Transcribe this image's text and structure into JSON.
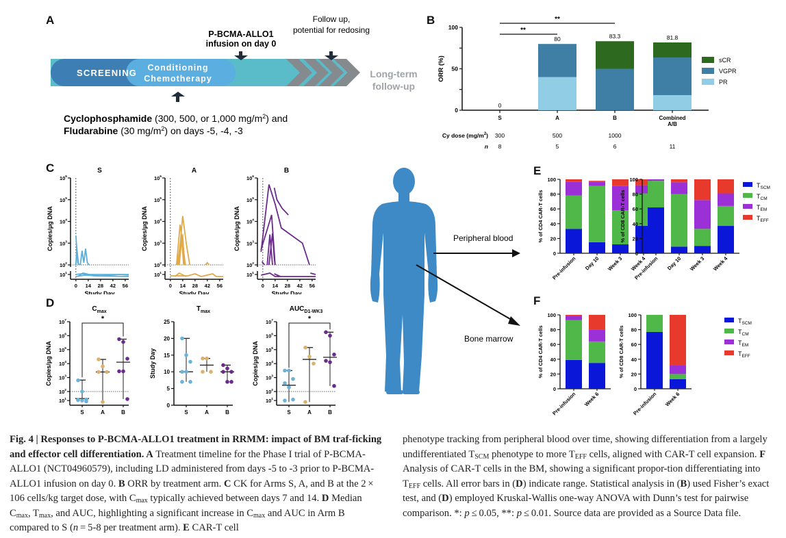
{
  "panels": {
    "A": {
      "label": "A",
      "timeline": {
        "screening": "SCREENING",
        "conditioning_line1": "Conditioning",
        "conditioning_line2": "Chemotherapy",
        "longterm_line1": "Long-term",
        "longterm_line2": "follow-up"
      },
      "infusion_line1": "P-BCMA-ALLO1",
      "infusion_line2": "infusion on day 0",
      "followup_line1": "Follow up,",
      "followup_line2": "potential for redosing",
      "ld_cy_bold": "Cyclophosphamide",
      "ld_cy_rest": " (300, 500, or 1,000 mg/m",
      "ld_cy_sup": "2",
      "ld_cy_end": ") and",
      "ld_flu_bold": "Fludarabine",
      "ld_flu_rest": " (30 mg/m",
      "ld_flu_sup": "2",
      "ld_flu_end": ") on days -5, -4, -3",
      "colors": {
        "screening": "#3d7fb5",
        "conditioning": "#5aaee0",
        "timeline": "#5bbcc9",
        "chevron": "#858a8e",
        "longterm": "#a0a4a8",
        "arrow": "#1f2d3d"
      }
    },
    "B": {
      "label": "B"
    },
    "C": {
      "label": "C"
    },
    "D": {
      "label": "D"
    },
    "E": {
      "label": "E"
    },
    "F": {
      "label": "F"
    },
    "body": {
      "peripheral_blood": "Peripheral blood",
      "bone_marrow": "Bone marrow",
      "silhouette_color": "#3d8ac6"
    }
  },
  "chart_data": [
    {
      "id": "B",
      "type": "bar",
      "stacked": true,
      "ylabel": "ORR (%)",
      "ylim": [
        0,
        100
      ],
      "yticks": [
        "0",
        "50",
        "100"
      ],
      "categories": [
        "S",
        "A",
        "B",
        "Combined A/B"
      ],
      "category_lines": [
        [
          "S"
        ],
        [
          "A"
        ],
        [
          "B"
        ],
        [
          "Combined",
          "A/B"
        ]
      ],
      "series": [
        {
          "name": "PR",
          "color": "#92cde6",
          "values": [
            0,
            40,
            0,
            18.2
          ]
        },
        {
          "name": "VGPR",
          "color": "#3f7fa6",
          "values": [
            0,
            40,
            50,
            45.4
          ]
        },
        {
          "name": "sCR",
          "color": "#2d6a1f",
          "values": [
            0,
            0,
            33.3,
            18.2
          ]
        }
      ],
      "legend_order": [
        "sCR",
        "VGPR",
        "PR"
      ],
      "totals": [
        "0",
        "80",
        "83.3",
        "81.8"
      ],
      "significance": [
        {
          "from": "S",
          "to": "A",
          "label": "**"
        },
        {
          "from": "S",
          "to": "B",
          "label": "**"
        }
      ],
      "table": {
        "row1_label": "Cy dose (mg/m",
        "row1_sup": "2",
        "row1_end": ")",
        "row1_values": [
          "300",
          "500",
          "1000",
          ""
        ],
        "row2_label": "n",
        "row2_values": [
          "8",
          "5",
          "6",
          "11"
        ]
      }
    },
    {
      "id": "C",
      "type": "line",
      "xlabel": "Study Day",
      "ylabel": "Copies/μg DNA",
      "yscale": "log",
      "yticks": [
        "10",
        "10",
        "10",
        "10",
        "10",
        "10"
      ],
      "ytick_exps": [
        "1",
        "2",
        "3",
        "4",
        "5",
        "6"
      ],
      "xticks": [
        "0",
        "14",
        "28",
        "42",
        "56"
      ],
      "xlim": [
        -3,
        60
      ],
      "lloq": 100,
      "subplots": [
        {
          "title": "S",
          "color": "#5ab0da",
          "lines": [
            [
              [
                0,
                3.35
              ],
              [
                2,
                2.1
              ],
              [
                4,
                2.0
              ]
            ],
            [
              [
                0,
                2.0
              ],
              [
                1,
                2.8
              ],
              [
                3,
                2.0
              ]
            ],
            [
              [
                5,
                2.0
              ],
              [
                7,
                2.65
              ],
              [
                9,
                2.1
              ],
              [
                11,
                2.75
              ],
              [
                13,
                2.1
              ],
              [
                15,
                2.0
              ]
            ],
            [
              [
                0,
                1.0
              ],
              [
                6,
                1.05
              ],
              [
                14,
                1.0
              ],
              [
                60,
                1.0
              ]
            ],
            [
              [
                2,
                0.85
              ],
              [
                8,
                1.1
              ],
              [
                12,
                1.05
              ],
              [
                20,
                0.9
              ],
              [
                60,
                0.85
              ]
            ],
            [
              [
                0,
                0.85
              ],
              [
                10,
                0.95
              ],
              [
                28,
                0.9
              ],
              [
                50,
                1.0
              ],
              [
                60,
                0.95
              ]
            ]
          ]
        },
        {
          "title": "A",
          "color": "#e0aa4a",
          "lines": [
            [
              [
                7,
                2.0
              ],
              [
                11,
                3.85
              ],
              [
                14,
                3.0
              ],
              [
                17,
                2.0
              ]
            ],
            [
              [
                9,
                2.0
              ],
              [
                14,
                4.25
              ],
              [
                18,
                3.0
              ],
              [
                22,
                2.0
              ]
            ],
            [
              [
                8,
                2.0
              ],
              [
                12,
                3.2
              ],
              [
                14,
                3.35
              ],
              [
                16,
                2.0
              ]
            ],
            [
              [
                10,
                2.0
              ],
              [
                13,
                3.2
              ],
              [
                15,
                2.0
              ]
            ],
            [
              [
                40,
                2.0
              ],
              [
                42,
                2.1
              ],
              [
                44,
                2.0
              ]
            ],
            [
              [
                0,
                0.9
              ],
              [
                20,
                0.9
              ],
              [
                28,
                1.05
              ],
              [
                35,
                0.85
              ],
              [
                48,
                1.05
              ],
              [
                52,
                0.85
              ],
              [
                60,
                0.85
              ]
            ],
            [
              [
                5,
                0.85
              ],
              [
                10,
                1.1
              ],
              [
                18,
                0.85
              ]
            ]
          ]
        },
        {
          "title": "B",
          "color": "#6a2a8e",
          "lines": [
            [
              [
                -2,
                2.6
              ],
              [
                7,
                5.7
              ],
              [
                14,
                4.8
              ],
              [
                21,
                3.7
              ],
              [
                45,
                3.0
              ],
              [
                53,
                2.0
              ]
            ],
            [
              [
                13,
                5.55
              ],
              [
                16,
                5.0
              ],
              [
                22,
                4.6
              ],
              [
                29,
                4.3
              ]
            ],
            [
              [
                -2,
                2.7
              ],
              [
                10,
                4.3
              ],
              [
                14,
                2.0
              ]
            ],
            [
              [
                5,
                2.0
              ],
              [
                8,
                3.4
              ],
              [
                11,
                2.0
              ]
            ],
            [
              [
                7,
                2.0
              ],
              [
                11,
                3.45
              ],
              [
                13,
                2.3
              ],
              [
                14,
                2.0
              ]
            ],
            [
              [
                -1,
                2.15
              ],
              [
                2,
                2.0
              ]
            ],
            [
              [
                -2,
                0.95
              ],
              [
                8,
                1.1
              ],
              [
                14,
                0.85
              ],
              [
                60,
                0.85
              ]
            ],
            [
              [
                13,
                1.05
              ],
              [
                20,
                0.85
              ]
            ],
            [
              [
                54,
                1.1
              ],
              [
                60,
                1.0
              ]
            ]
          ]
        }
      ]
    },
    {
      "id": "D",
      "type": "scatter",
      "categories": [
        "S",
        "A",
        "B"
      ],
      "colors": {
        "S": "#6bb3d8",
        "A": "#dcb26a",
        "B": "#6a2a8e"
      },
      "subplots": [
        {
          "title": "C",
          "title_sub": "max",
          "ylabel": "Copies/μg DNA",
          "yscale": "log",
          "yticks_exp": [
            "1",
            "2",
            "3",
            "4",
            "5",
            "6",
            "7"
          ],
          "points": {
            "S": [
              2.8,
              2.0,
              1.1,
              1.05,
              1.0,
              0.9,
              1.05
            ],
            "A": [
              4.3,
              3.8,
              3.4,
              3.4,
              0.85
            ],
            "B": [
              5.75,
              5.55,
              4.35,
              3.45,
              3.45,
              1.15
            ]
          },
          "median": {
            "S": 1.2,
            "A": 3.4,
            "B": 4.1
          },
          "range": {
            "S": [
              0.85,
              2.82
            ],
            "A": [
              0.85,
              4.3
            ],
            "B": [
              1.15,
              5.75
            ]
          },
          "significance": {
            "from": "S",
            "to": "B",
            "label": "*"
          }
        },
        {
          "title": "T",
          "title_sub": "max",
          "ylabel": "Study Day",
          "yscale": "linear",
          "ylim": [
            0,
            25
          ],
          "yticks": [
            "0",
            "5",
            "10",
            "15",
            "20",
            "25"
          ],
          "points": {
            "S": [
              20,
              15,
              13,
              10,
              10,
              7,
              7
            ],
            "A": [
              14,
              14,
              10,
              10
            ],
            "B": [
              12,
              11,
              10,
              10,
              7,
              7
            ]
          },
          "median": {
            "S": 10,
            "A": 12,
            "B": 10
          },
          "range": {
            "S": [
              7,
              20
            ],
            "A": [
              10,
              14
            ],
            "B": [
              7,
              12
            ]
          }
        },
        {
          "title": "AUC",
          "title_sub": "D1-WK3",
          "ylabel": "Copies/μg DNA",
          "yscale": "log",
          "yticks_exp": [
            "1",
            "2",
            "3",
            "4",
            "5",
            "6",
            "7"
          ],
          "points": {
            "S": [
              3.5,
              3.5,
              2.9,
              2.6,
              2.3,
              1.1,
              1.0
            ],
            "A": [
              5.15,
              4.5,
              4.0,
              0.85
            ],
            "B": [
              6.25,
              6.0,
              4.65,
              4.2,
              4.1,
              2.4
            ]
          },
          "median": {
            "S": 2.45,
            "A": 4.3,
            "B": 4.45
          },
          "range": {
            "S": [
              0.85,
              3.5
            ],
            "A": [
              0.85,
              5.15
            ],
            "B": [
              2.4,
              6.25
            ]
          },
          "significance": {
            "from": "S",
            "to": "B",
            "label": "*"
          }
        }
      ]
    },
    {
      "id": "E",
      "type": "bar",
      "stacked": true,
      "ylim": [
        0,
        100
      ],
      "yticks": [
        "0",
        "20",
        "40",
        "60",
        "80",
        "100"
      ],
      "legend": [
        {
          "name": "T",
          "sub": "SCM",
          "color": "#0a16d8"
        },
        {
          "name": "T",
          "sub": "CM",
          "color": "#4fb848"
        },
        {
          "name": "T",
          "sub": "EM",
          "color": "#9b30d6"
        },
        {
          "name": "T",
          "sub": "EFF",
          "color": "#e8392d"
        }
      ],
      "subplots": [
        {
          "ylabel": "% of CD4 CAR-T cells",
          "categories": [
            "Pre-infusion",
            "Day 10",
            "Week 3",
            "Week 4"
          ],
          "series": {
            "TSCM": [
              33,
              15,
              12,
              37
            ],
            "TCM": [
              45,
              76,
              46,
              44
            ],
            "TEM": [
              19,
              6,
              33,
              11
            ],
            "TEFF": [
              3,
              1,
              9,
              8
            ]
          }
        },
        {
          "ylabel": "% of CD8 CAR-T cells",
          "categories": [
            "Pre-infusion",
            "Day 10",
            "Week 3",
            "Week 4"
          ],
          "series": {
            "TSCM": [
              62,
              9,
              10,
              37
            ],
            "TCM": [
              36,
              71,
              23,
              27
            ],
            "TEM": [
              2,
              16,
              39,
              17
            ],
            "TEFF": [
              0,
              4,
              28,
              19
            ]
          }
        }
      ]
    },
    {
      "id": "F",
      "type": "bar",
      "stacked": true,
      "ylim": [
        0,
        100
      ],
      "yticks": [
        "0",
        "20",
        "40",
        "60",
        "80",
        "100"
      ],
      "legend": [
        {
          "name": "T",
          "sub": "SCM",
          "color": "#0a16d8"
        },
        {
          "name": "T",
          "sub": "CM",
          "color": "#4fb848"
        },
        {
          "name": "T",
          "sub": "EM",
          "color": "#9b30d6"
        },
        {
          "name": "T",
          "sub": "EFF",
          "color": "#e8392d"
        }
      ],
      "subplots": [
        {
          "ylabel": "% of CD4 CAR-T cells",
          "categories": [
            "Pre-infusion",
            "Week 6"
          ],
          "series": {
            "TSCM": [
              39,
              35
            ],
            "TCM": [
              54,
              29
            ],
            "TEM": [
              6,
              16
            ],
            "TEFF": [
              1,
              20
            ]
          }
        },
        {
          "ylabel": "% of CD8 CAR-T cells",
          "categories": [
            "Pre-infusion",
            "Week 6"
          ],
          "series": {
            "TSCM": [
              77,
              13
            ],
            "TCM": [
              23,
              7
            ],
            "TEM": [
              0,
              12
            ],
            "TEFF": [
              0,
              68
            ]
          }
        }
      ]
    }
  ],
  "caption": {
    "fig_label": "Fig. 4 | Responses to P-BCMA-ALLO1 treatment in RRMM: impact of BM traf-ficking and effector cell differentiation.",
    "A_label": "A",
    "A_text": " Treatment timeline for the Phase I trial of P-BCMA-ALLO1 (NCT04960579), including LD administered from days -5 to -3 prior to P-BCMA-ALLO1 infusion on day 0. ",
    "B_label": "B",
    "B_text": " ORR by treatment arm. ",
    "C_label": "C",
    "C_text1": " CK for Arms S, A, and B at the 2 × 106 cells/kg target dose, with C",
    "C_sub": "max",
    "C_text2": " typically achieved between days 7 and 14. ",
    "D_label": "D",
    "D_text1": " Median C",
    "D_sub1": "max",
    "D_text2": ", T",
    "D_sub2": "max",
    "D_text3": ", and AUC, highlighting a significant increase in C",
    "D_sub3": "max",
    "D_text4": " and AUC in Arm B compared to S (",
    "D_n": "n",
    "D_text5": " = 5-8 per treatment arm). ",
    "E_label": "E",
    "E_text1": " CAR-T cell phenotype tracking from peripheral blood over time, showing differentiation from a largely undifferentiated T",
    "E_sub1": "SCM",
    "E_text2": " phenotype to more T",
    "E_sub2": "EFF",
    "E_text3": " cells, aligned with CAR-T cell expansion. ",
    "F_label": "F",
    "F_text1": " Analysis of CAR-T cells in the BM, showing a significant propor-tion differentiating into T",
    "F_sub": "EFF",
    "F_text2": " cells. All error bars in (",
    "F_D": "D",
    "F_text3": ") indicate range. Statistical analysis in (",
    "F_B": "B",
    "F_text4": ") used Fisher’s exact test, and (",
    "F_D2": "D",
    "F_text5": ") employed Kruskal-Wallis one-way ANOVA with Dunn’s test for pairwise comparison. *: ",
    "p1": "p",
    "F_text6": " ≤ 0.05, **: ",
    "p2": "p",
    "F_text7": " ≤ 0.01. Source data are provided as a Source Data file."
  }
}
